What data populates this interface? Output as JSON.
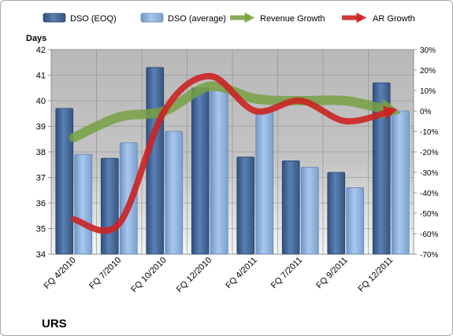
{
  "chart_data": {
    "type": "bar",
    "title": "URS",
    "ylabel": "Days",
    "categories": [
      "FQ 4/2010",
      "FQ 7/2010",
      "FQ 10/2010",
      "FQ 12/2010",
      "FQ 4/2011",
      "FQ 7/2011",
      "FQ 9/2011",
      "FQ 12/2011"
    ],
    "ylim": [
      34,
      42
    ],
    "y_ticks": [
      "34",
      "35",
      "36",
      "37",
      "38",
      "39",
      "40",
      "41",
      "42"
    ],
    "y2lim": [
      -70,
      30
    ],
    "y2_ticks": [
      "30%",
      "20%",
      "10%",
      "0%",
      "-10%",
      "-20%",
      "-30%",
      "-40%",
      "-50%",
      "-60%",
      "-70%"
    ],
    "series": [
      {
        "name": "DSO (EOQ)",
        "type": "bar",
        "axis": "left",
        "color": "#4a6fa5",
        "values": [
          39.7,
          37.75,
          41.3,
          40.5,
          37.8,
          37.65,
          37.2,
          40.7
        ]
      },
      {
        "name": "DSO (average)",
        "type": "bar",
        "axis": "left",
        "color": "#8eb3e0",
        "values": [
          37.9,
          38.35,
          38.8,
          40.4,
          39.6,
          37.4,
          36.6,
          39.6
        ]
      },
      {
        "name": "Revenue Growth",
        "type": "line",
        "axis": "right",
        "color": "#77a043",
        "values": [
          -13,
          -3,
          0,
          12,
          6,
          5,
          5,
          0
        ]
      },
      {
        "name": "AR Growth",
        "type": "line",
        "axis": "right",
        "color": "#cc2222",
        "values": [
          -53,
          -55,
          0,
          17,
          0,
          5,
          -5,
          0
        ]
      }
    ],
    "grid": true,
    "legend": "top"
  }
}
